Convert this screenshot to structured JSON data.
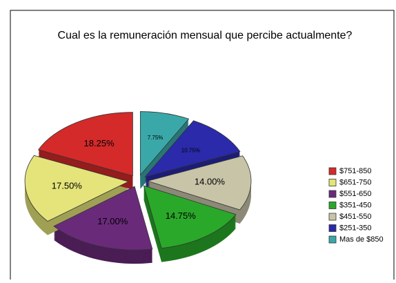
{
  "chart_data": {
    "type": "pie",
    "title": "Cual es la remuneración mensual que percibe actualmente?",
    "series": [
      {
        "name": "$751-850",
        "color": "#d42a2a",
        "values": [
          18.25
        ],
        "value_labels": [
          "18.25%"
        ]
      },
      {
        "name": "$651-750",
        "color": "#e4e47a",
        "values": [
          17.5
        ],
        "value_labels": [
          "17.50%"
        ]
      },
      {
        "name": "$551-650",
        "color": "#6a2a7a",
        "values": [
          17.0
        ],
        "value_labels": [
          "17.00%"
        ]
      },
      {
        "name": "$351-450",
        "color": "#2aa82a",
        "values": [
          14.75
        ],
        "value_labels": [
          "14.75%"
        ]
      },
      {
        "name": "$451-550",
        "color": "#c8c4a8",
        "values": [
          14.0
        ],
        "value_labels": [
          "14.00%"
        ]
      },
      {
        "name": "$251-350",
        "color": "#2a2aaa",
        "values": [
          10.75
        ],
        "value_labels": [
          "10.75%"
        ]
      },
      {
        "name": "Mas de $850",
        "color": "#3aa8a8",
        "values": [
          7.75
        ],
        "value_labels": [
          "7.75%"
        ]
      }
    ]
  }
}
